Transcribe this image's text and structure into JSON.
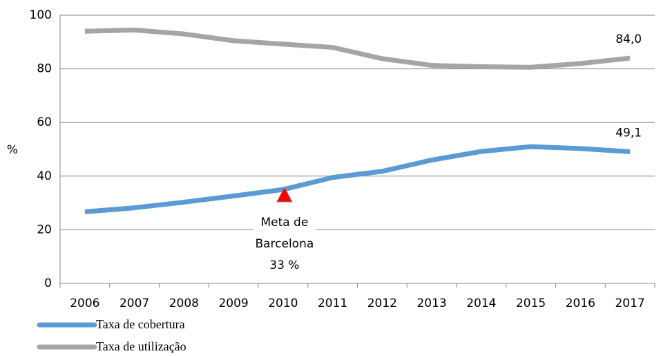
{
  "chart_data": {
    "type": "line",
    "categories": [
      "2006",
      "2007",
      "2008",
      "2009",
      "2010",
      "2011",
      "2012",
      "2013",
      "2014",
      "2015",
      "2016",
      "2017"
    ],
    "series": [
      {
        "name": "Taxa de cobertura",
        "color": "#5b9bd5",
        "values": [
          26.7,
          28.2,
          30.3,
          32.6,
          35.0,
          39.5,
          41.8,
          46.0,
          49.2,
          51.0,
          50.3,
          49.1
        ],
        "value_labels": [
          null,
          null,
          null,
          null,
          null,
          null,
          null,
          null,
          null,
          null,
          null,
          "49,1"
        ]
      },
      {
        "name": "Taxa de utilização",
        "color": "#a5a5a5",
        "values": [
          94.0,
          94.5,
          93.0,
          90.5,
          89.2,
          88.0,
          83.8,
          81.3,
          80.8,
          80.6,
          82.0,
          84.0
        ],
        "value_labels": [
          null,
          null,
          null,
          null,
          null,
          null,
          null,
          null,
          null,
          null,
          null,
          "84,0"
        ]
      }
    ],
    "ylabel": "%",
    "ylim": [
      0,
      100
    ],
    "yticks": [
      0,
      20,
      40,
      60,
      80,
      100
    ],
    "grid": true,
    "annotation": {
      "lines": [
        "Meta de",
        "Barcelona",
        "33 %"
      ],
      "category": "2010",
      "value": 33,
      "color": "#ff0000"
    },
    "legend": "bottom-left"
  }
}
